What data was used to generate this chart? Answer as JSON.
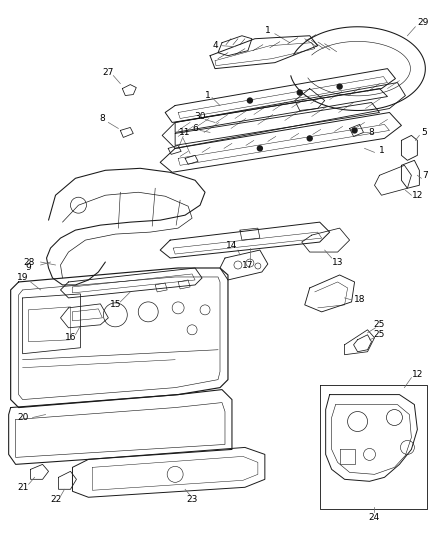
{
  "bg_color": "#ffffff",
  "line_color": "#1a1a1a",
  "label_color": "#000000",
  "fig_width": 4.38,
  "fig_height": 5.33,
  "dpi": 100,
  "label_font_size": 6.5,
  "lw": 0.7
}
